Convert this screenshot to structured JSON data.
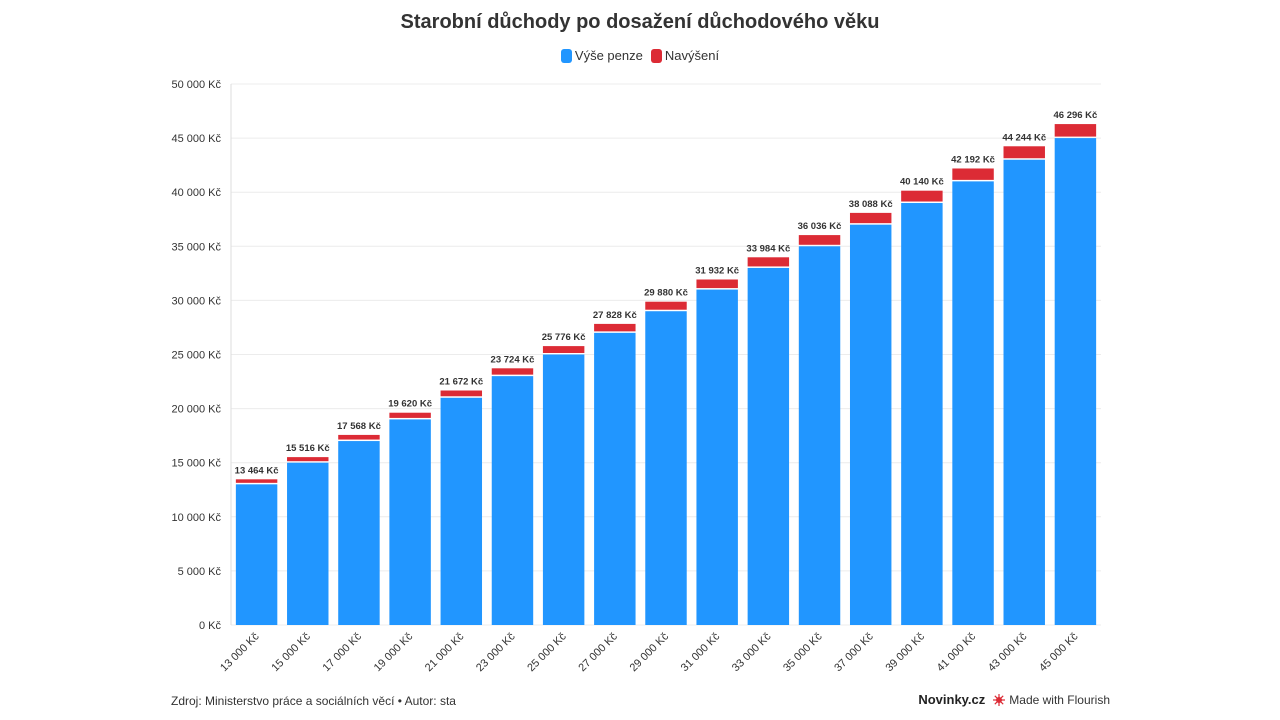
{
  "colors": {
    "base": "#2196FF",
    "increase": "#DC2B35",
    "grid": "#ececec",
    "text": "#333333"
  },
  "footer": {
    "source": "Zdroj: Ministerstvo práce a sociálních věcí • Autor: sta",
    "brand": "Novinky.cz",
    "made_with": "Made with Flourish"
  },
  "chart_data": {
    "type": "bar",
    "stacked": true,
    "title": "Starobní důchody po dosažení důchodového věku",
    "legend": [
      "Výše penze",
      "Navýšení"
    ],
    "legend_position": "top-center",
    "categories": [
      "13 000 Kč",
      "15 000 Kč",
      "17 000 Kč",
      "19 000 Kč",
      "21 000 Kč",
      "23 000 Kč",
      "25 000 Kč",
      "27 000 Kč",
      "29 000 Kč",
      "31 000 Kč",
      "33 000 Kč",
      "35 000 Kč",
      "37 000 Kč",
      "39 000 Kč",
      "41 000 Kč",
      "43 000 Kč",
      "45 000 Kč"
    ],
    "series": [
      {
        "name": "Výše penze",
        "values": [
          13000,
          15000,
          17000,
          19000,
          21000,
          23000,
          25000,
          27000,
          29000,
          31000,
          33000,
          35000,
          37000,
          39000,
          41000,
          43000,
          45000
        ]
      },
      {
        "name": "Navýšení",
        "values": [
          464,
          516,
          568,
          620,
          672,
          724,
          776,
          828,
          880,
          932,
          984,
          1036,
          1088,
          1140,
          1192,
          1244,
          1296
        ]
      }
    ],
    "total_labels": [
      "13 464 Kč",
      "15 516 Kč",
      "17 568 Kč",
      "19 620 Kč",
      "21 672 Kč",
      "23 724 Kč",
      "25 776 Kč",
      "27 828 Kč",
      "29 880 Kč",
      "31 932 Kč",
      "33 984 Kč",
      "36 036 Kč",
      "38 088 Kč",
      "40 140 Kč",
      "42 192 Kč",
      "44 244 Kč",
      "46 296 Kč"
    ],
    "y_ticks": [
      0,
      5000,
      10000,
      15000,
      20000,
      25000,
      30000,
      35000,
      40000,
      45000,
      50000
    ],
    "y_tick_labels": [
      "0 Kč",
      "5 000 Kč",
      "10 000 Kč",
      "15 000 Kč",
      "20 000 Kč",
      "25 000 Kč",
      "30 000 Kč",
      "35 000 Kč",
      "40 000 Kč",
      "45 000 Kč",
      "50 000 Kč"
    ],
    "ylim": [
      0,
      50000
    ],
    "grid": true
  }
}
